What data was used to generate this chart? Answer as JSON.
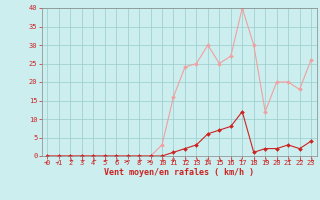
{
  "hours": [
    0,
    1,
    2,
    3,
    4,
    5,
    6,
    7,
    8,
    9,
    10,
    11,
    12,
    13,
    14,
    15,
    16,
    17,
    18,
    19,
    20,
    21,
    22,
    23
  ],
  "wind_avg": [
    0,
    0,
    0,
    0,
    0,
    0,
    0,
    0,
    0,
    0,
    0,
    1,
    2,
    3,
    6,
    7,
    8,
    12,
    1,
    2,
    2,
    3,
    2,
    4
  ],
  "wind_gust": [
    0,
    0,
    0,
    0,
    0,
    0,
    0,
    0,
    0,
    0,
    3,
    16,
    24,
    25,
    30,
    25,
    27,
    40,
    30,
    12,
    20,
    20,
    18,
    26
  ],
  "color_avg": "#cc2222",
  "color_gust": "#f0a0a0",
  "bg_color": "#cceeee",
  "grid_color": "#99cccc",
  "xlabel": "Vent moyen/en rafales ( km/h )",
  "xlabel_color": "#cc2222",
  "tick_color": "#cc2222",
  "ylim": [
    0,
    40
  ],
  "yticks": [
    0,
    5,
    10,
    15,
    20,
    25,
    30,
    35,
    40
  ],
  "xticks": [
    0,
    1,
    2,
    3,
    4,
    5,
    6,
    7,
    8,
    9,
    10,
    11,
    12,
    13,
    14,
    15,
    16,
    17,
    18,
    19,
    20,
    21,
    22,
    23
  ],
  "arrow_angles": [
    45,
    45,
    -135,
    -135,
    -135,
    -135,
    -135,
    0,
    -135,
    0,
    -135,
    -90,
    -135,
    -135,
    -90,
    -135,
    -135,
    -45,
    -135,
    -135,
    -135,
    -135,
    -135,
    -135
  ]
}
